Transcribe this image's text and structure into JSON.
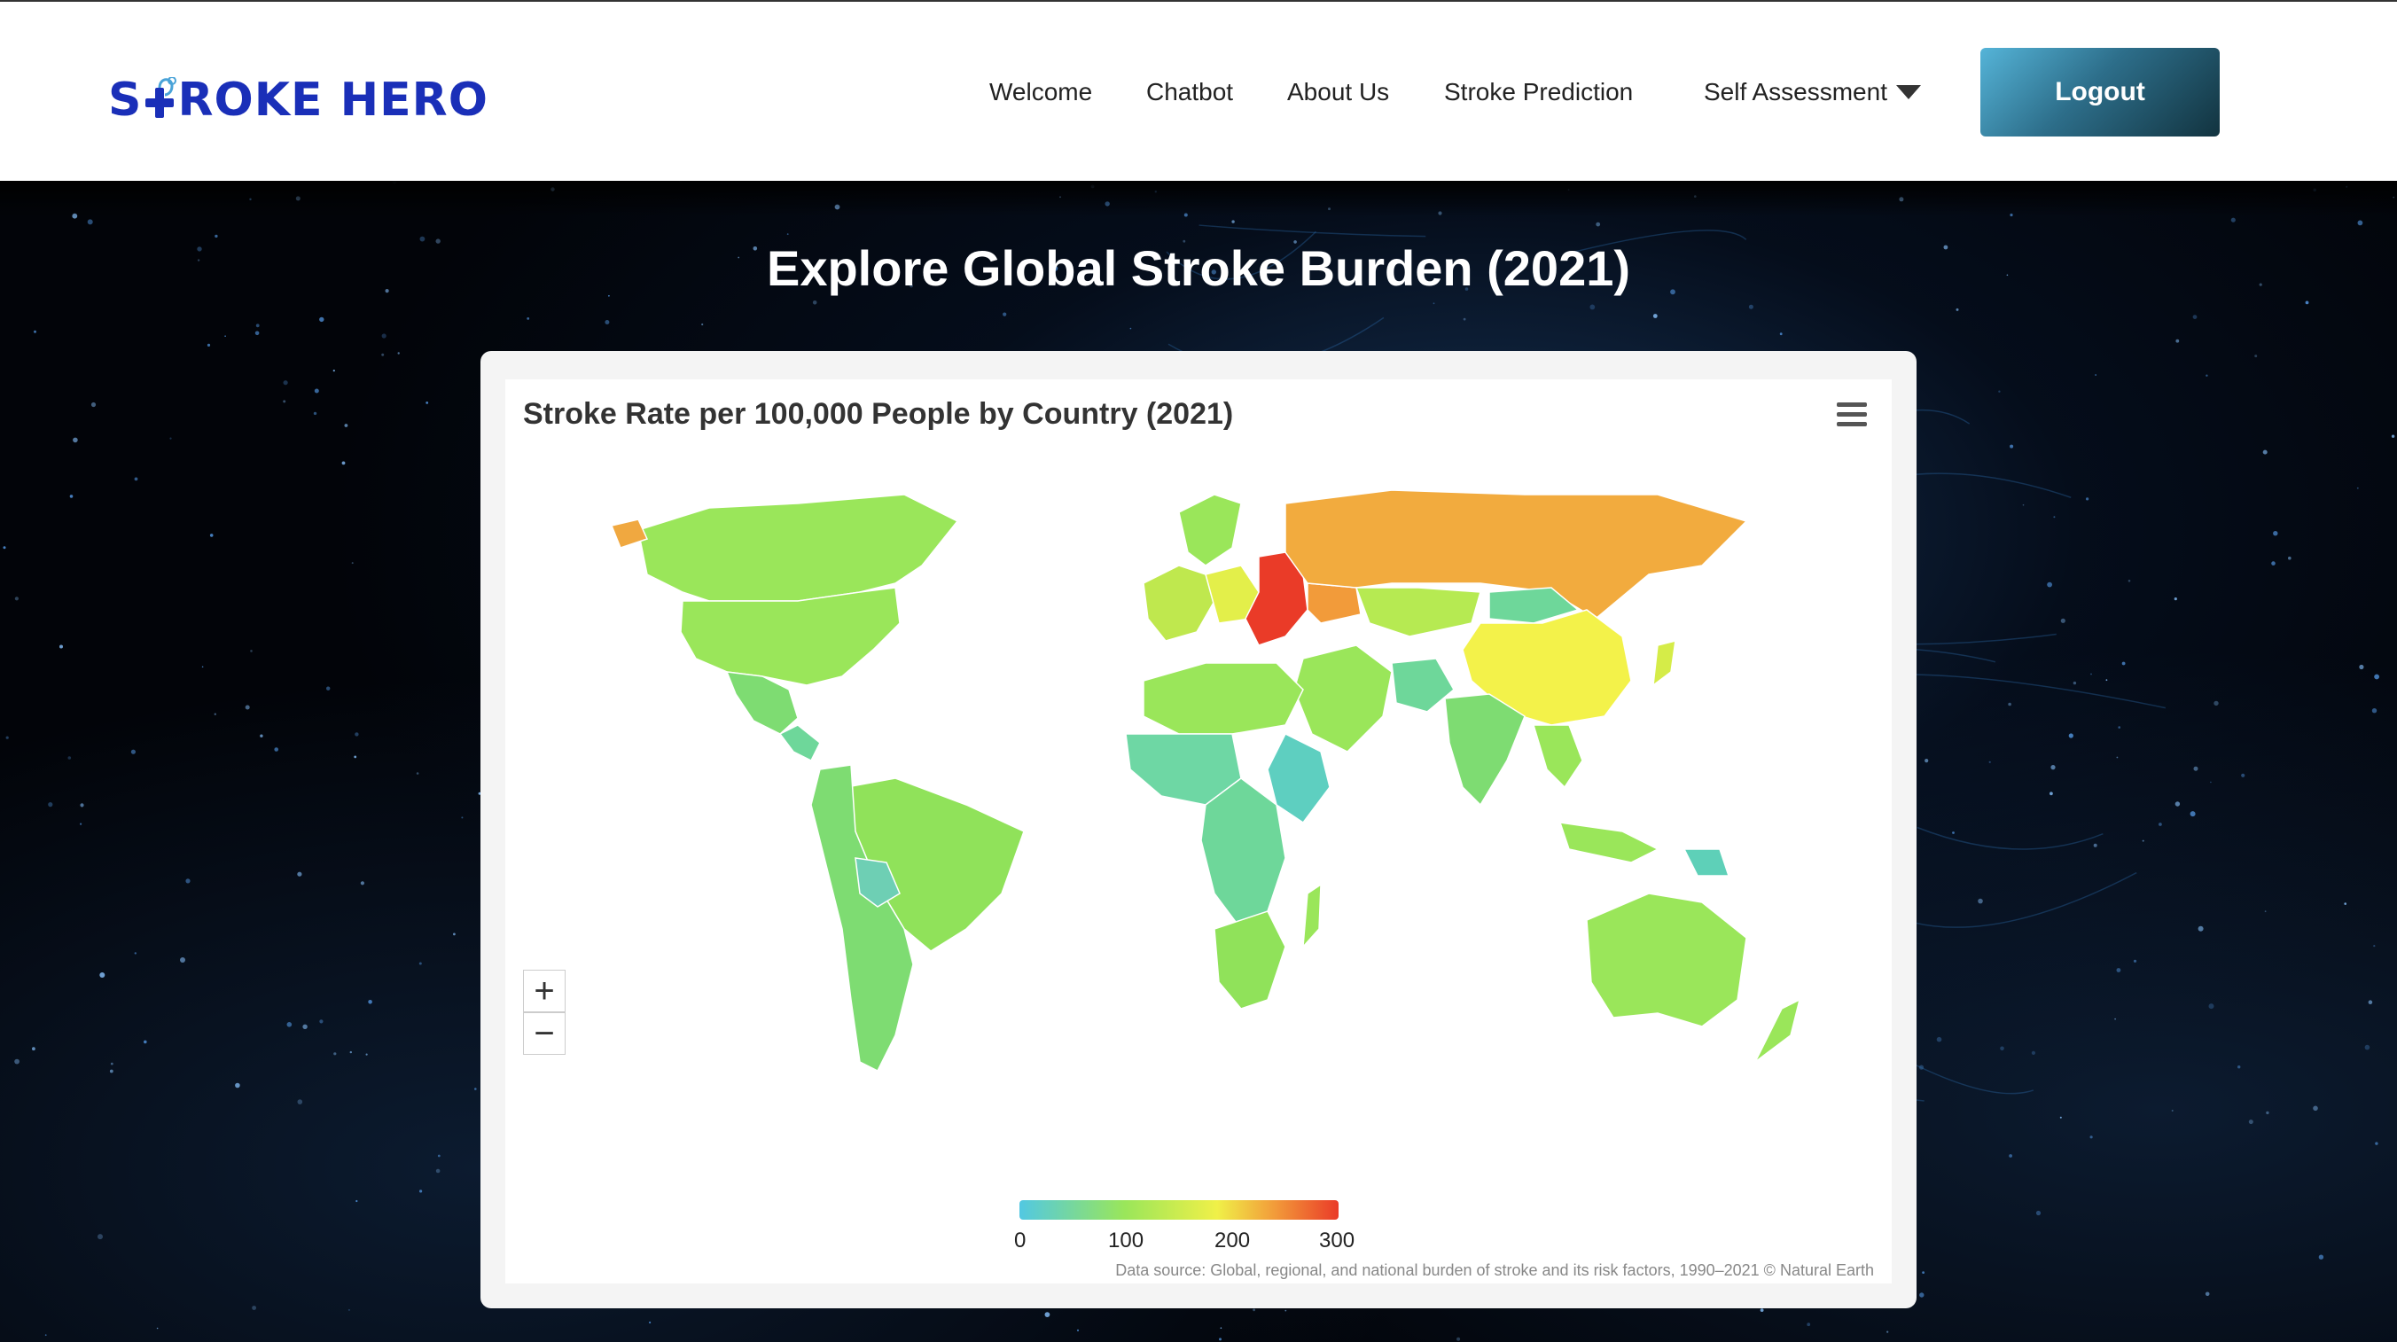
{
  "brand": {
    "logo_text_before": "S",
    "logo_text_after": "ROKE HERO",
    "brand_color": "#1a2fb8"
  },
  "nav": {
    "items": [
      {
        "label": "Welcome"
      },
      {
        "label": "Chatbot"
      },
      {
        "label": "About Us"
      },
      {
        "label": "Stroke Prediction"
      },
      {
        "label": "Self Assessment"
      }
    ],
    "logout_label": "Logout"
  },
  "page": {
    "title": "Explore Global Stroke Burden (2021)"
  },
  "chart": {
    "title": "Stroke Rate per 100,000 People by Country (2021)",
    "zoom_in": "+",
    "zoom_out": "−",
    "credit": "Data source: Global, regional, and national burden of stroke and its risk factors, 1990–2021 © Natural Earth",
    "legend_ticks": [
      "0",
      "100",
      "200",
      "300"
    ]
  },
  "chart_data": {
    "type": "choropleth",
    "title": "Stroke Rate per 100,000 People by Country (2021)",
    "color_scale": {
      "min": 0,
      "max": 300,
      "ticks": [
        0,
        100,
        200,
        300
      ],
      "colors": [
        "#52c8e2",
        "#9ae65a",
        "#f0f048",
        "#f29b3a",
        "#ea3b28"
      ]
    },
    "legend_position": "bottom-center"
  }
}
